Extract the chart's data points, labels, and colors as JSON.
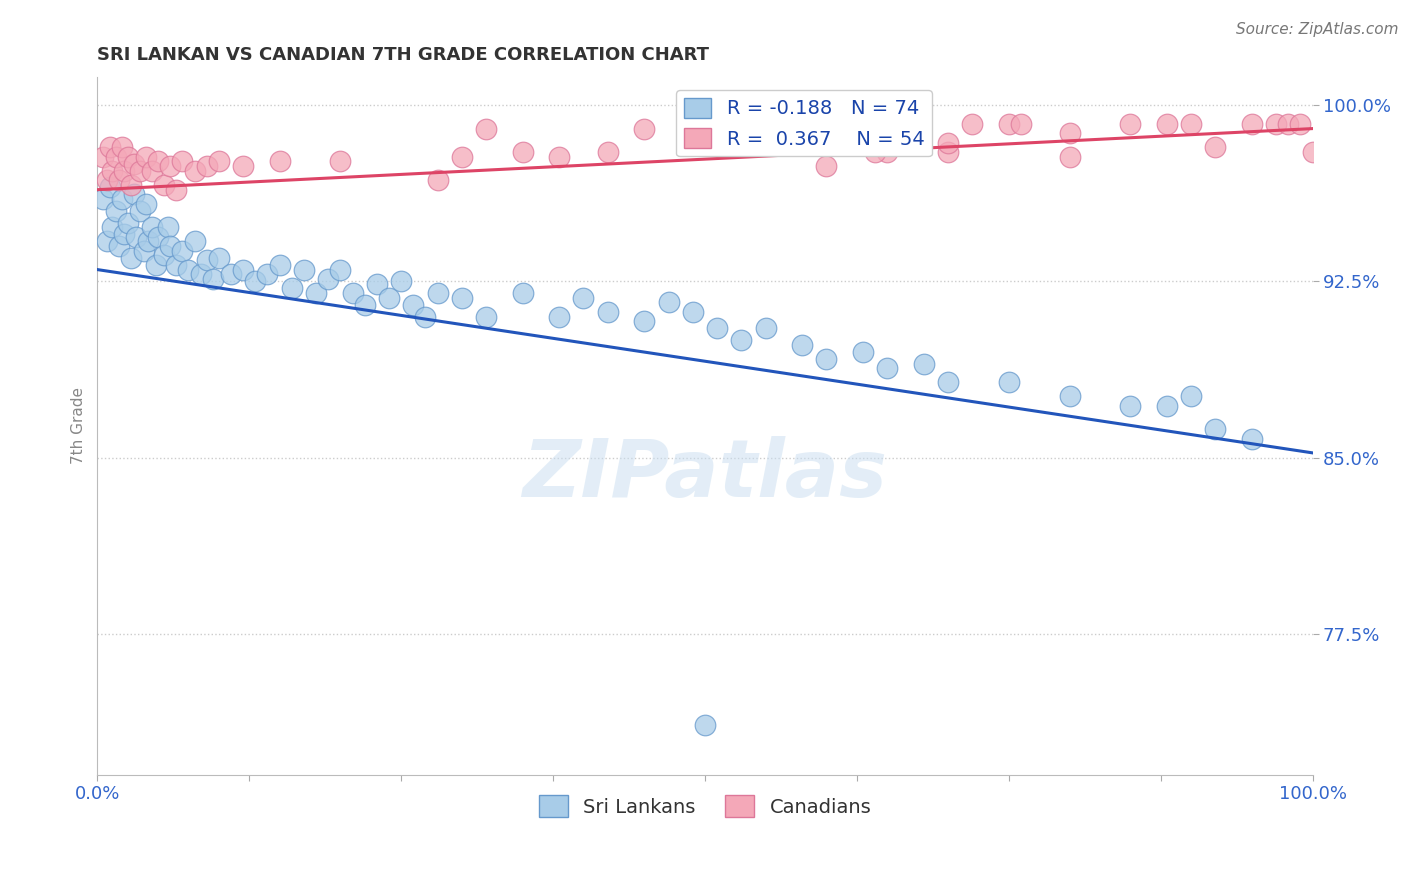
{
  "title": "SRI LANKAN VS CANADIAN 7TH GRADE CORRELATION CHART",
  "source_text": "Source: ZipAtlas.com",
  "ylabel": "7th Grade",
  "xlim": [
    0.0,
    1.0
  ],
  "ylim": [
    0.715,
    1.012
  ],
  "yticks": [
    0.775,
    0.85,
    0.925,
    1.0
  ],
  "ytick_labels": [
    "77.5%",
    "85.0%",
    "92.5%",
    "100.0%"
  ],
  "xticks": [
    0.0,
    0.125,
    0.25,
    0.375,
    0.5,
    0.625,
    0.75,
    0.875,
    1.0
  ],
  "xtick_labels": [
    "0.0%",
    "",
    "",
    "",
    "",
    "",
    "",
    "",
    "100.0%"
  ],
  "sri_color": "#a8cce8",
  "sri_edge": "#6699cc",
  "can_color": "#f4a8b8",
  "can_edge": "#dd7799",
  "trend_blue": "#2255bb",
  "trend_pink": "#dd4466",
  "R_blue": -0.188,
  "N_blue": 74,
  "R_pink": 0.367,
  "N_pink": 54,
  "watermark": "ZIPatlas",
  "background_color": "#ffffff",
  "grid_color": "#cccccc",
  "sri_x": [
    0.005,
    0.008,
    0.01,
    0.012,
    0.015,
    0.018,
    0.02,
    0.022,
    0.025,
    0.028,
    0.03,
    0.032,
    0.035,
    0.038,
    0.04,
    0.042,
    0.045,
    0.048,
    0.05,
    0.055,
    0.058,
    0.06,
    0.065,
    0.07,
    0.075,
    0.08,
    0.085,
    0.09,
    0.095,
    0.1,
    0.11,
    0.12,
    0.13,
    0.14,
    0.15,
    0.16,
    0.17,
    0.18,
    0.19,
    0.2,
    0.21,
    0.22,
    0.23,
    0.24,
    0.25,
    0.26,
    0.27,
    0.28,
    0.3,
    0.32,
    0.35,
    0.38,
    0.4,
    0.42,
    0.45,
    0.47,
    0.49,
    0.51,
    0.53,
    0.55,
    0.58,
    0.6,
    0.63,
    0.65,
    0.68,
    0.7,
    0.75,
    0.8,
    0.85,
    0.88,
    0.9,
    0.92,
    0.95,
    0.5
  ],
  "sri_y": [
    0.96,
    0.942,
    0.965,
    0.948,
    0.955,
    0.94,
    0.96,
    0.945,
    0.95,
    0.935,
    0.962,
    0.944,
    0.955,
    0.938,
    0.958,
    0.942,
    0.948,
    0.932,
    0.944,
    0.936,
    0.948,
    0.94,
    0.932,
    0.938,
    0.93,
    0.942,
    0.928,
    0.934,
    0.926,
    0.935,
    0.928,
    0.93,
    0.925,
    0.928,
    0.932,
    0.922,
    0.93,
    0.92,
    0.926,
    0.93,
    0.92,
    0.915,
    0.924,
    0.918,
    0.925,
    0.915,
    0.91,
    0.92,
    0.918,
    0.91,
    0.92,
    0.91,
    0.918,
    0.912,
    0.908,
    0.916,
    0.912,
    0.905,
    0.9,
    0.905,
    0.898,
    0.892,
    0.895,
    0.888,
    0.89,
    0.882,
    0.882,
    0.876,
    0.872,
    0.872,
    0.876,
    0.862,
    0.858,
    0.736
  ],
  "can_x": [
    0.005,
    0.008,
    0.01,
    0.012,
    0.015,
    0.018,
    0.02,
    0.022,
    0.025,
    0.028,
    0.03,
    0.035,
    0.04,
    0.045,
    0.05,
    0.055,
    0.06,
    0.065,
    0.07,
    0.08,
    0.09,
    0.1,
    0.12,
    0.15,
    0.2,
    0.28,
    0.3,
    0.32,
    0.35,
    0.38,
    0.42,
    0.45,
    0.5,
    0.55,
    0.6,
    0.65,
    0.7,
    0.75,
    0.8,
    0.85,
    0.88,
    0.9,
    0.92,
    0.95,
    0.97,
    0.98,
    0.99,
    1.0,
    0.64,
    0.65,
    0.7,
    0.72,
    0.76,
    0.8
  ],
  "can_y": [
    0.978,
    0.968,
    0.982,
    0.972,
    0.978,
    0.968,
    0.982,
    0.972,
    0.978,
    0.966,
    0.975,
    0.972,
    0.978,
    0.972,
    0.976,
    0.966,
    0.974,
    0.964,
    0.976,
    0.972,
    0.974,
    0.976,
    0.974,
    0.976,
    0.976,
    0.968,
    0.978,
    0.99,
    0.98,
    0.978,
    0.98,
    0.99,
    0.99,
    0.992,
    0.974,
    0.98,
    0.98,
    0.992,
    0.978,
    0.992,
    0.992,
    0.992,
    0.982,
    0.992,
    0.992,
    0.992,
    0.992,
    0.98,
    0.98,
    0.988,
    0.984,
    0.992,
    0.992,
    0.988
  ]
}
